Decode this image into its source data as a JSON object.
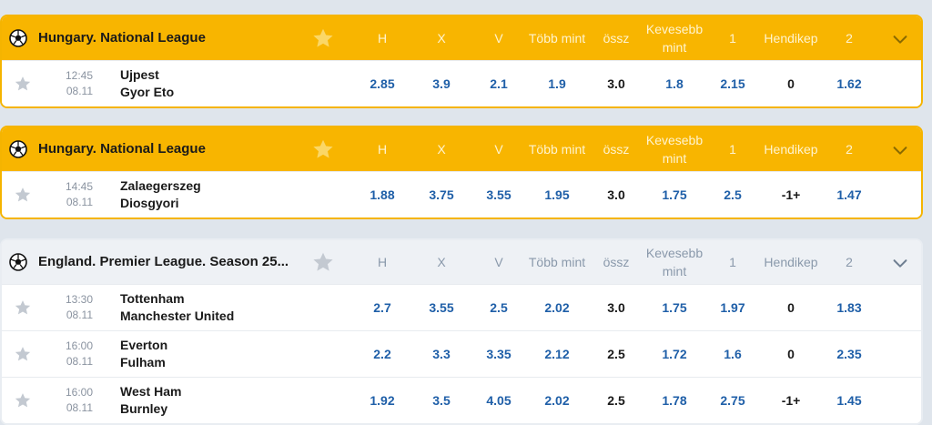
{
  "colors": {
    "accent": "#f8b500",
    "odds_blue": "#1f5fa8",
    "header_grey": "#eef1f5",
    "star_grey": "#c3c9d1"
  },
  "icons": {
    "league": "soccer-ball-icon",
    "favorite": "star-icon",
    "expand": "chevron-down-icon"
  },
  "columns": {
    "h": "H",
    "x": "X",
    "v": "V",
    "tobb": "Több mint",
    "ossz": "össz",
    "kevesebb": "Kevesebb mint",
    "one": "1",
    "hendikep": "Hendikep",
    "two": "2"
  },
  "leagues": [
    {
      "title": "Hungary. National League",
      "highlighted": true,
      "matches": [
        {
          "time": "12:45",
          "date": "08.11",
          "home": "Ujpest",
          "away": "Gyor Eto",
          "h": "2.85",
          "x": "3.9",
          "v": "2.1",
          "tobb": "1.9",
          "ossz": "3.0",
          "kevesebb": "1.8",
          "one": "2.15",
          "hendikep": "0",
          "two": "1.62"
        }
      ]
    },
    {
      "title": "Hungary. National League",
      "highlighted": true,
      "matches": [
        {
          "time": "14:45",
          "date": "08.11",
          "home": "Zalaegerszeg",
          "away": "Diosgyori",
          "h": "1.88",
          "x": "3.75",
          "v": "3.55",
          "tobb": "1.95",
          "ossz": "3.0",
          "kevesebb": "1.75",
          "one": "2.5",
          "hendikep": "-1+",
          "two": "1.47"
        }
      ]
    },
    {
      "title": "England. Premier League. Season 25...",
      "highlighted": false,
      "matches": [
        {
          "time": "13:30",
          "date": "08.11",
          "home": "Tottenham",
          "away": "Manchester United",
          "h": "2.7",
          "x": "3.55",
          "v": "2.5",
          "tobb": "2.02",
          "ossz": "3.0",
          "kevesebb": "1.75",
          "one": "1.97",
          "hendikep": "0",
          "two": "1.83"
        },
        {
          "time": "16:00",
          "date": "08.11",
          "home": "Everton",
          "away": "Fulham",
          "h": "2.2",
          "x": "3.3",
          "v": "3.35",
          "tobb": "2.12",
          "ossz": "2.5",
          "kevesebb": "1.72",
          "one": "1.6",
          "hendikep": "0",
          "two": "2.35"
        },
        {
          "time": "16:00",
          "date": "08.11",
          "home": "West Ham",
          "away": "Burnley",
          "h": "1.92",
          "x": "3.5",
          "v": "4.05",
          "tobb": "2.02",
          "ossz": "2.5",
          "kevesebb": "1.78",
          "one": "2.75",
          "hendikep": "-1+",
          "two": "1.45"
        }
      ]
    }
  ]
}
